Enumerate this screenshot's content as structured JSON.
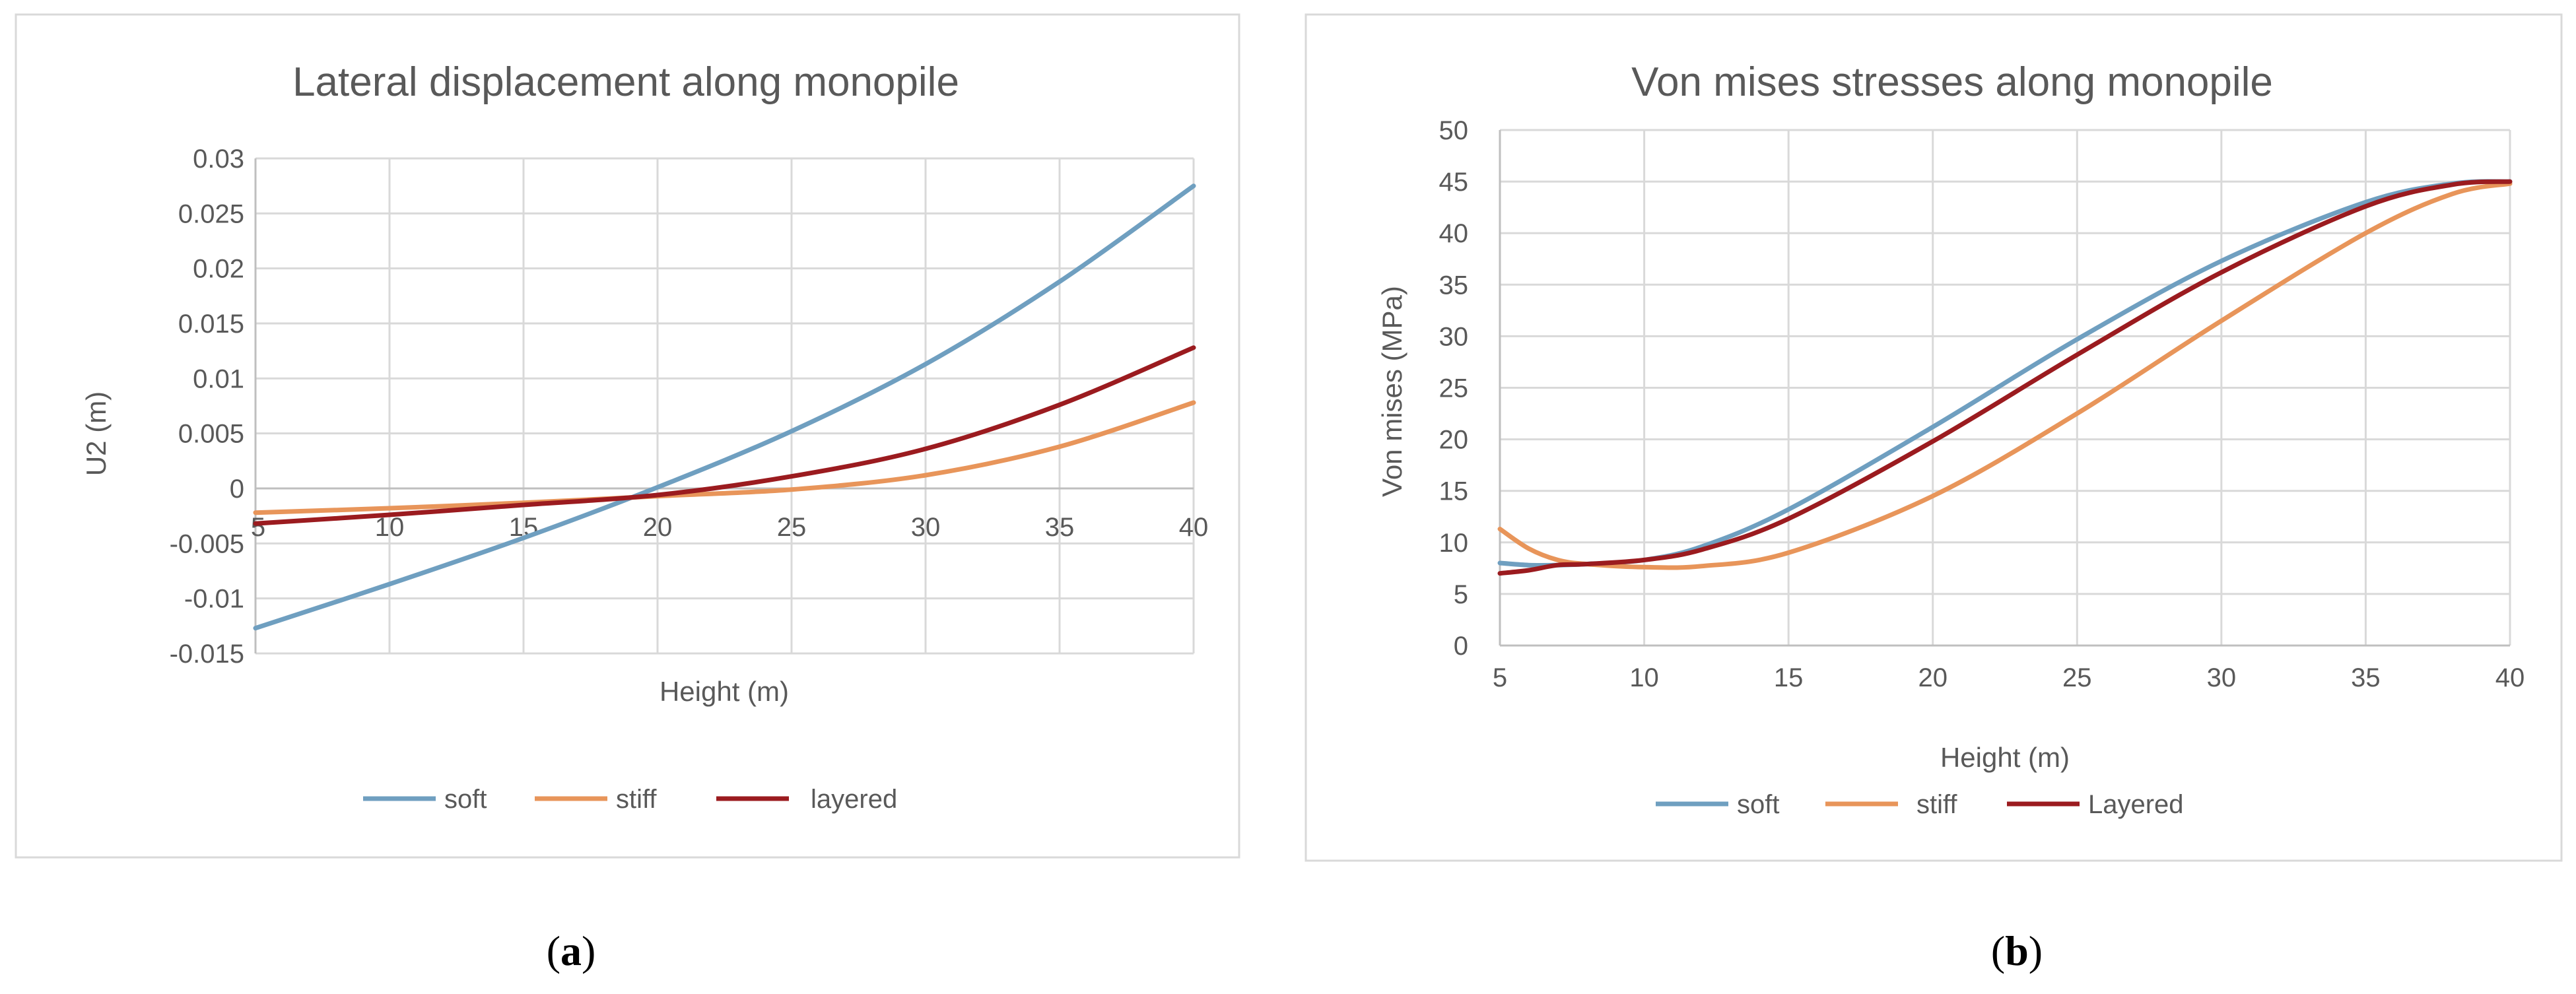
{
  "chart_data": [
    {
      "type": "line",
      "title": "Lateral displacement along monopile",
      "xlabel": "Height (m)",
      "ylabel": "U2 (m)",
      "xlim": [
        5,
        40
      ],
      "ylim": [
        -0.015,
        0.03
      ],
      "x_ticks": [
        5,
        10,
        15,
        20,
        25,
        30,
        35,
        40
      ],
      "y_ticks": [
        -0.015,
        -0.01,
        -0.005,
        0,
        0.005,
        0.01,
        0.015,
        0.02,
        0.025,
        0.03
      ],
      "x_tick_labels": [
        "5",
        "10",
        "15",
        "20",
        "25",
        "30",
        "35",
        "40"
      ],
      "y_tick_labels": [
        "-0.015",
        "-0.01",
        "-0.005",
        "0",
        "0.005",
        "0.01",
        "0.015",
        "0.02",
        "0.025",
        "0.03"
      ],
      "x": [
        5,
        10,
        15,
        20,
        25,
        30,
        35,
        40
      ],
      "series": [
        {
          "name": "soft",
          "color": "#6f9fc0",
          "values": [
            -0.0127,
            -0.0087,
            -0.0045,
            0.0001,
            0.0052,
            0.0113,
            0.0188,
            0.0275
          ]
        },
        {
          "name": "stiff",
          "color": "#e8955a",
          "values": [
            -0.0022,
            -0.0018,
            -0.0013,
            -0.0007,
            -0.0001,
            0.0012,
            0.0038,
            0.0078
          ]
        },
        {
          "name": "layered",
          "color": "#9b1b1f",
          "values": [
            -0.0032,
            -0.0024,
            -0.0015,
            -0.0006,
            0.0011,
            0.0036,
            0.0076,
            0.0128
          ]
        }
      ],
      "legend": "bottom"
    },
    {
      "type": "line",
      "title": "Von mises stresses along monopile",
      "xlabel": "Height (m)",
      "ylabel": "Von mises (MPa)",
      "xlim": [
        5,
        40
      ],
      "ylim": [
        0,
        50
      ],
      "x_ticks": [
        5,
        10,
        15,
        20,
        25,
        30,
        35,
        40
      ],
      "y_ticks": [
        0,
        5,
        10,
        15,
        20,
        25,
        30,
        35,
        40,
        45,
        50
      ],
      "x_tick_labels": [
        "5",
        "10",
        "15",
        "20",
        "25",
        "30",
        "35",
        "40"
      ],
      "y_tick_labels": [
        "0",
        "5",
        "10",
        "15",
        "20",
        "25",
        "30",
        "35",
        "40",
        "45",
        "50"
      ],
      "x": [
        5,
        6,
        7,
        8,
        10,
        12,
        15,
        20,
        25,
        30,
        35,
        38,
        40
      ],
      "series": [
        {
          "name": "soft",
          "color": "#6f9fc0",
          "values": [
            8.0,
            7.8,
            7.8,
            7.9,
            8.3,
            9.6,
            13.2,
            21.2,
            29.7,
            37.3,
            43.0,
            44.8,
            45.0
          ]
        },
        {
          "name": "stiff",
          "color": "#e8955a",
          "values": [
            11.3,
            9.4,
            8.3,
            7.9,
            7.6,
            7.7,
            9.0,
            14.5,
            22.5,
            31.5,
            40.0,
            43.8,
            44.8
          ]
        },
        {
          "name": "Layered",
          "color": "#9b1b1f",
          "values": [
            7.0,
            7.3,
            7.8,
            7.9,
            8.3,
            9.3,
            12.3,
            19.8,
            28.2,
            36.2,
            42.6,
            44.7,
            45.0
          ]
        }
      ],
      "legend": "bottom"
    }
  ],
  "captions": [
    {
      "open": "(",
      "letter": "a",
      "close": ")"
    },
    {
      "open": "(",
      "letter": "b",
      "close": ")"
    }
  ]
}
